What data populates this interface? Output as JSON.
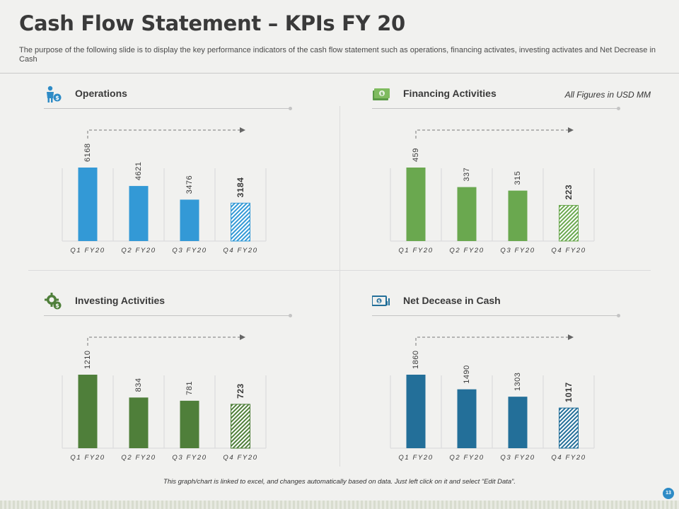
{
  "header": {
    "title": "Cash Flow Statement – KPIs FY 20",
    "subtitle": "The purpose of the following slide is to display the key performance indicators of the cash flow statement such as operations, financing activates, investing activates and Net Decrease in Cash",
    "note": "All Figures in USD MM"
  },
  "footer": {
    "note": "This graph/chart is linked to excel, and changes automatically based on data. Just left click on it and select “Edit Data”.",
    "page_number": "13"
  },
  "icons": {
    "operations": "money-person-icon",
    "financing": "cash-note-icon",
    "investing": "dollar-gear-icon",
    "net_decrease": "cash-chart-icon"
  },
  "colors": {
    "operations": "#3399d6",
    "financing": "#6aa84f",
    "investing": "#4f7f3a",
    "net_decrease": "#236f99"
  },
  "chart_data": [
    {
      "type": "bar",
      "title": "Operations",
      "categories": [
        "Q1 FY20",
        "Q2 FY20",
        "Q3 FY20",
        "Q4 FY20"
      ],
      "values": [
        6168,
        4621,
        3476,
        3184
      ],
      "xlabel": "",
      "ylabel": "",
      "grid": false
    },
    {
      "type": "bar",
      "title": "Financing Activities",
      "categories": [
        "Q1 FY20",
        "Q2 FY20",
        "Q3 FY20",
        "Q4 FY20"
      ],
      "values": [
        459,
        337,
        315,
        223
      ],
      "xlabel": "",
      "ylabel": "",
      "grid": false
    },
    {
      "type": "bar",
      "title": "Investing Activities",
      "categories": [
        "Q1 FY20",
        "Q2 FY20",
        "Q3 FY20",
        "Q4 FY20"
      ],
      "values": [
        1210,
        834,
        781,
        723
      ],
      "xlabel": "",
      "ylabel": "",
      "grid": false
    },
    {
      "type": "bar",
      "title": "Net Decease in Cash",
      "categories": [
        "Q1 FY20",
        "Q2 FY20",
        "Q3 FY20",
        "Q4 FY20"
      ],
      "values": [
        1860,
        1490,
        1303,
        1017
      ],
      "xlabel": "",
      "ylabel": "",
      "grid": false
    }
  ]
}
